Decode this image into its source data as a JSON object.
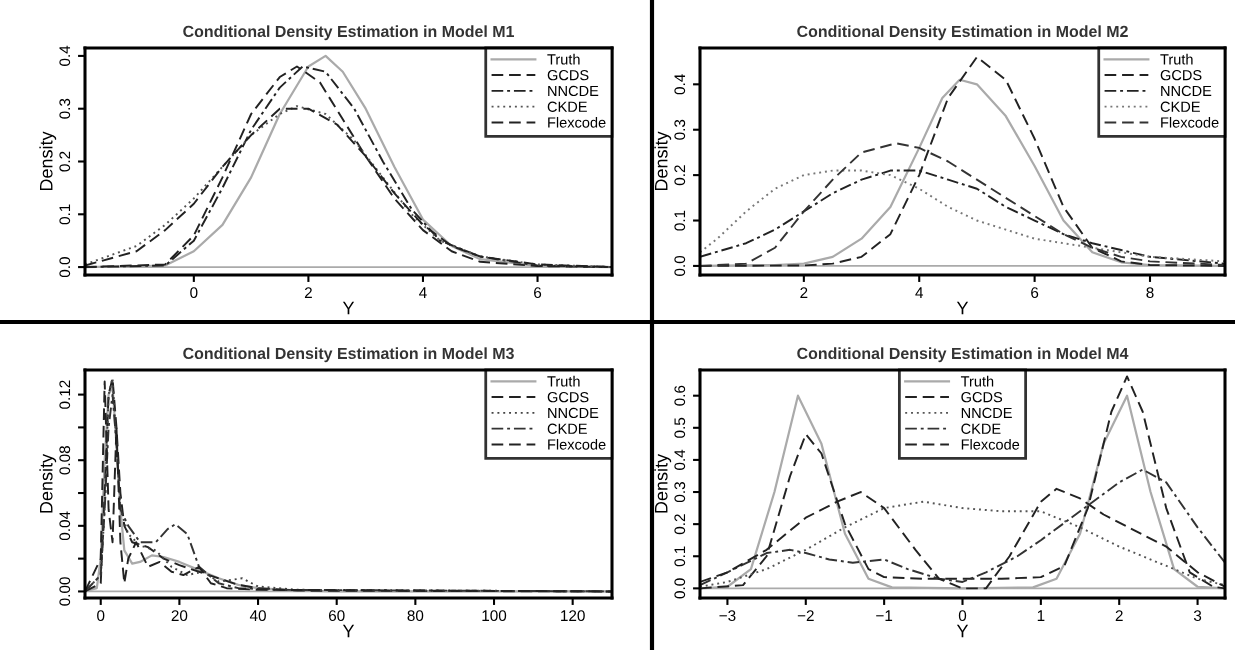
{
  "chart_data": [
    {
      "type": "line",
      "title": "Conditional Density Estimation in Model M1",
      "xlabel": "Y",
      "ylabel": "Density",
      "legend": "top right",
      "grid": false,
      "xlim": [
        -1.9,
        7.3
      ],
      "ylim": [
        -0.015,
        0.415
      ],
      "xticks": [
        0,
        2,
        4,
        6
      ],
      "yticks": [
        {
          "value": 0,
          "label": "0.0"
        },
        0.1,
        0.2,
        0.3,
        0.4
      ],
      "ref_lines": [
        {
          "axis": "y",
          "value": 0,
          "color": "#aaaaaa"
        }
      ],
      "series": [
        {
          "name": "Truth",
          "color": "#aaaaaa",
          "line_style": "solid",
          "x": [
            -1.9,
            -0.5,
            0,
            0.5,
            1,
            1.5,
            2,
            2.3,
            2.6,
            3,
            3.5,
            4,
            4.5,
            5,
            6,
            7.3
          ],
          "values": [
            0,
            0.003,
            0.03,
            0.08,
            0.17,
            0.29,
            0.38,
            0.4,
            0.37,
            0.3,
            0.19,
            0.09,
            0.04,
            0.015,
            0.002,
            0
          ]
        },
        {
          "name": "GCDS",
          "color": "#222222",
          "line_style": "dashed",
          "x": [
            -1.9,
            -0.5,
            0,
            0.5,
            1,
            1.5,
            1.8,
            2.2,
            2.6,
            3,
            3.5,
            4,
            4.5,
            5,
            6,
            7.3
          ],
          "values": [
            0,
            0.005,
            0.06,
            0.17,
            0.29,
            0.36,
            0.38,
            0.35,
            0.28,
            0.21,
            0.13,
            0.07,
            0.03,
            0.01,
            0.002,
            0
          ]
        },
        {
          "name": "NNCDE",
          "color": "#222222",
          "line_style": "dashdot",
          "x": [
            -1.9,
            -0.5,
            0,
            0.5,
            1,
            1.5,
            1.9,
            2.3,
            2.8,
            3.3,
            3.8,
            4.3,
            5,
            6,
            7.3
          ],
          "values": [
            0,
            0.003,
            0.05,
            0.15,
            0.26,
            0.34,
            0.38,
            0.37,
            0.3,
            0.2,
            0.11,
            0.05,
            0.02,
            0.003,
            0
          ]
        },
        {
          "name": "CKDE",
          "color": "#555555",
          "line_style": "dotted",
          "x": [
            -1.9,
            -1,
            -0.5,
            0,
            0.5,
            1,
            1.5,
            1.8,
            2.3,
            2.8,
            3.3,
            3.8,
            4.3,
            5,
            6,
            7.3
          ],
          "values": [
            0.005,
            0.04,
            0.08,
            0.13,
            0.19,
            0.25,
            0.29,
            0.305,
            0.29,
            0.24,
            0.17,
            0.1,
            0.05,
            0.02,
            0.005,
            0
          ]
        },
        {
          "name": "Flexcode",
          "color": "#222222",
          "line_style": "dashed",
          "x": [
            -1.9,
            -1,
            -0.5,
            0,
            0.5,
            1,
            1.5,
            2,
            2.5,
            3,
            3.5,
            4,
            4.5,
            5,
            6,
            7.3
          ],
          "values": [
            0.003,
            0.03,
            0.07,
            0.12,
            0.19,
            0.25,
            0.3,
            0.3,
            0.27,
            0.21,
            0.14,
            0.08,
            0.04,
            0.02,
            0.005,
            0
          ]
        }
      ]
    },
    {
      "type": "line",
      "title": "Conditional Density Estimation in Model M2",
      "xlabel": "Y",
      "ylabel": "Density",
      "legend": "top right",
      "grid": false,
      "xlim": [
        0.2,
        9.3
      ],
      "ylim": [
        -0.02,
        0.48
      ],
      "xticks": [
        2,
        4,
        6,
        8
      ],
      "yticks": [
        {
          "value": 0,
          "label": "0.0"
        },
        0.1,
        0.2,
        0.3,
        0.4
      ],
      "ref_lines": [
        {
          "axis": "y",
          "value": 0,
          "color": "#aaaaaa"
        }
      ],
      "series": [
        {
          "name": "Truth",
          "color": "#aaaaaa",
          "line_style": "solid",
          "x": [
            0.2,
            1.5,
            2,
            2.5,
            3,
            3.5,
            4,
            4.4,
            4.7,
            5,
            5.5,
            6,
            6.5,
            7,
            7.5,
            8,
            9.3
          ],
          "values": [
            0,
            0.002,
            0.005,
            0.02,
            0.06,
            0.13,
            0.26,
            0.37,
            0.41,
            0.4,
            0.33,
            0.22,
            0.1,
            0.03,
            0.008,
            0.002,
            0
          ]
        },
        {
          "name": "GCDS",
          "color": "#222222",
          "line_style": "dashed",
          "x": [
            0.2,
            2,
            2.5,
            3,
            3.5,
            4,
            4.5,
            5,
            5.5,
            6,
            6.5,
            7,
            7.5,
            8,
            9.3
          ],
          "values": [
            0,
            0.001,
            0.005,
            0.02,
            0.07,
            0.2,
            0.37,
            0.46,
            0.41,
            0.28,
            0.13,
            0.04,
            0.01,
            0.002,
            0
          ]
        },
        {
          "name": "NNCDE",
          "color": "#222222",
          "line_style": "dashdot",
          "x": [
            0.2,
            1,
            1.5,
            2,
            2.5,
            3,
            3.5,
            4,
            4.5,
            5,
            5.5,
            6,
            6.5,
            7,
            7.5,
            8,
            9.3
          ],
          "values": [
            0.02,
            0.05,
            0.08,
            0.12,
            0.16,
            0.19,
            0.21,
            0.21,
            0.19,
            0.17,
            0.13,
            0.1,
            0.07,
            0.05,
            0.035,
            0.02,
            0.005
          ]
        },
        {
          "name": "CKDE",
          "color": "#777777",
          "line_style": "dotted",
          "x": [
            0.2,
            0.5,
            1,
            1.5,
            2,
            2.5,
            3,
            3.5,
            4,
            4.5,
            5,
            5.5,
            6,
            6.5,
            7,
            7.5,
            8,
            9.3
          ],
          "values": [
            0.03,
            0.06,
            0.12,
            0.17,
            0.2,
            0.21,
            0.21,
            0.2,
            0.17,
            0.13,
            0.1,
            0.08,
            0.06,
            0.05,
            0.04,
            0.03,
            0.02,
            0.01
          ]
        },
        {
          "name": "Flexcode",
          "color": "#333333",
          "line_style": "dashed",
          "x": [
            0.2,
            1,
            1.5,
            2,
            2.5,
            3,
            3.6,
            4,
            4.5,
            5,
            5.5,
            6,
            6.5,
            7,
            7.5,
            8,
            9.3
          ],
          "values": [
            0,
            0.005,
            0.04,
            0.12,
            0.19,
            0.25,
            0.27,
            0.26,
            0.23,
            0.19,
            0.15,
            0.11,
            0.07,
            0.04,
            0.02,
            0.01,
            0.002
          ]
        }
      ]
    },
    {
      "type": "line",
      "title": "Conditional Density Estimation in Model M3",
      "xlabel": "Y",
      "ylabel": "Density",
      "legend": "top right",
      "grid": false,
      "xlim": [
        -4,
        130
      ],
      "ylim": [
        -0.004,
        0.135
      ],
      "xticks": [
        0,
        20,
        40,
        60,
        80,
        100,
        120
      ],
      "yticks": [
        {
          "value": 0,
          "label": "0.00"
        },
        {
          "value": 0.02,
          "label": null
        },
        0.04,
        {
          "value": 0.06,
          "label": null
        },
        0.08,
        {
          "value": 0.1,
          "label": null
        },
        0.12
      ],
      "ref_lines": [
        {
          "axis": "y",
          "value": 0,
          "color": "#aaaaaa"
        }
      ],
      "series": [
        {
          "name": "Truth",
          "color": "#aaaaaa",
          "line_style": "solid",
          "x": [
            -4,
            -1,
            0,
            1,
            2,
            3,
            4,
            5,
            6,
            8,
            10,
            13,
            16,
            20,
            25,
            30,
            35,
            40,
            50,
            60,
            130
          ],
          "values": [
            0,
            0.002,
            0.02,
            0.08,
            0.12,
            0.125,
            0.09,
            0.05,
            0.025,
            0.017,
            0.018,
            0.022,
            0.021,
            0.018,
            0.013,
            0.008,
            0.004,
            0.002,
            0.0005,
            0,
            0
          ]
        },
        {
          "name": "GCDS",
          "color": "#222222",
          "line_style": "dashed",
          "x": [
            -4,
            0,
            1,
            2,
            3,
            4,
            5,
            6,
            8,
            12,
            16,
            20,
            25,
            30,
            35,
            40,
            50,
            130
          ],
          "values": [
            0,
            0.005,
            0.06,
            0.12,
            0.13,
            0.1,
            0.06,
            0.04,
            0.03,
            0.027,
            0.02,
            0.016,
            0.012,
            0.008,
            0.004,
            0.002,
            0.0005,
            0
          ]
        },
        {
          "name": "NNCDE",
          "color": "#444444",
          "line_style": "dotted",
          "x": [
            -4,
            0,
            1,
            2,
            3,
            4,
            5,
            7,
            10,
            14,
            18,
            22,
            26,
            30,
            36,
            40,
            50,
            130
          ],
          "values": [
            0,
            0.01,
            0.05,
            0.12,
            0.13,
            0.09,
            0.05,
            0.035,
            0.028,
            0.025,
            0.015,
            0.01,
            0.012,
            0.006,
            0.008,
            0.003,
            0.001,
            0
          ]
        },
        {
          "name": "CKDE",
          "color": "#333333",
          "line_style": "dashdot",
          "x": [
            -4,
            0,
            1,
            2,
            3,
            4,
            5,
            7,
            10,
            14,
            17,
            19,
            22,
            25,
            30,
            35,
            45,
            130
          ],
          "values": [
            0,
            0.01,
            0.05,
            0.1,
            0.12,
            0.09,
            0.05,
            0.04,
            0.03,
            0.03,
            0.038,
            0.041,
            0.035,
            0.015,
            0.005,
            0.002,
            0.001,
            0
          ]
        },
        {
          "name": "Flexcode",
          "color": "#222222",
          "line_style": "dashed",
          "x": [
            -4,
            0,
            1,
            2,
            3,
            4,
            5,
            6,
            7,
            9,
            12,
            15,
            18,
            21,
            25,
            28,
            32,
            40,
            130
          ],
          "values": [
            0,
            0.02,
            0.128,
            0.05,
            0.03,
            0.1,
            0.03,
            0.005,
            0.02,
            0.03,
            0.015,
            0.018,
            0.012,
            0.01,
            0.015,
            0.005,
            0.002,
            0.001,
            0
          ]
        }
      ]
    },
    {
      "type": "line",
      "title": "Conditional Density Estimation in Model M4",
      "xlabel": "Y",
      "ylabel": "Density",
      "legend": "top",
      "grid": false,
      "xlim": [
        -3.35,
        3.35
      ],
      "ylim": [
        -0.03,
        0.68
      ],
      "xticks": [
        {
          "value": -3,
          "label": "−3"
        },
        {
          "value": -2,
          "label": "−2"
        },
        {
          "value": -1,
          "label": "−1"
        },
        0,
        1,
        2,
        3
      ],
      "yticks": [
        {
          "value": 0,
          "label": "0.0"
        },
        0.1,
        0.2,
        0.3,
        0.4,
        0.5,
        0.6
      ],
      "ref_lines": [
        {
          "axis": "y",
          "value": 0,
          "color": "#aaaaaa"
        }
      ],
      "series": [
        {
          "name": "Truth",
          "color": "#aaaaaa",
          "line_style": "solid",
          "x": [
            -3.35,
            -3,
            -2.7,
            -2.4,
            -2.1,
            -1.8,
            -1.5,
            -1.2,
            -0.9,
            0,
            0.9,
            1.2,
            1.5,
            1.8,
            2.1,
            2.4,
            2.7,
            3,
            3.35
          ],
          "values": [
            0,
            0.005,
            0.06,
            0.3,
            0.6,
            0.45,
            0.17,
            0.03,
            0.003,
            0,
            0.003,
            0.03,
            0.17,
            0.45,
            0.6,
            0.3,
            0.06,
            0.005,
            0
          ]
        },
        {
          "name": "GCDS",
          "color": "#222222",
          "line_style": "dashed",
          "x": [
            -3.35,
            -2.8,
            -2.5,
            -2.2,
            -2,
            -1.8,
            -1.5,
            -1.2,
            -1,
            -0.5,
            0,
            0.5,
            1,
            1.3,
            1.6,
            1.9,
            2.1,
            2.3,
            2.6,
            2.9,
            3.2,
            3.35
          ],
          "values": [
            0,
            0.01,
            0.1,
            0.35,
            0.48,
            0.42,
            0.2,
            0.06,
            0.035,
            0.03,
            0.03,
            0.03,
            0.035,
            0.07,
            0.25,
            0.55,
            0.66,
            0.55,
            0.25,
            0.05,
            0.005,
            0
          ]
        },
        {
          "name": "NNCDE",
          "color": "#555555",
          "line_style": "dotted",
          "x": [
            -3.35,
            -3,
            -2.5,
            -2,
            -1.5,
            -1,
            -0.5,
            0,
            0.5,
            1,
            1.5,
            2,
            2.5,
            3,
            3.35
          ],
          "values": [
            0.005,
            0.02,
            0.06,
            0.12,
            0.19,
            0.25,
            0.27,
            0.25,
            0.24,
            0.24,
            0.19,
            0.13,
            0.08,
            0.03,
            0.01
          ]
        },
        {
          "name": "CKDE",
          "color": "#333333",
          "line_style": "dashdot",
          "x": [
            -3.35,
            -3,
            -2.5,
            -2.2,
            -2,
            -1.7,
            -1.4,
            -1,
            -0.7,
            -0.3,
            0,
            0.3,
            0.7,
            1,
            1.5,
            2,
            2.3,
            2.6,
            3,
            3.35
          ],
          "values": [
            0.01,
            0.05,
            0.11,
            0.12,
            0.11,
            0.09,
            0.08,
            0.09,
            0.06,
            0.03,
            0.02,
            0.05,
            0.1,
            0.15,
            0.24,
            0.33,
            0.37,
            0.33,
            0.19,
            0.08
          ]
        },
        {
          "name": "Flexcode",
          "color": "#222222",
          "line_style": "dashed",
          "x": [
            -3.35,
            -3,
            -2.5,
            -2,
            -1.6,
            -1.3,
            -1,
            -0.6,
            -0.3,
            0,
            0.3,
            0.6,
            1,
            1.2,
            1.5,
            1.8,
            2.2,
            2.6,
            3,
            3.35
          ],
          "values": [
            0.02,
            0.05,
            0.12,
            0.22,
            0.27,
            0.3,
            0.25,
            0.12,
            0.03,
            0,
            0,
            0.1,
            0.27,
            0.31,
            0.28,
            0.23,
            0.18,
            0.13,
            0.05,
            0.005
          ]
        }
      ]
    }
  ]
}
